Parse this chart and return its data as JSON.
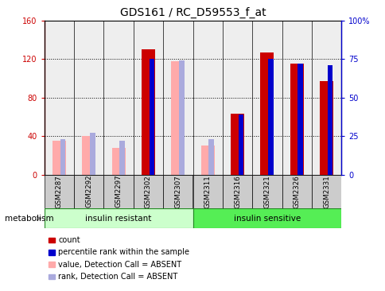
{
  "title": "GDS161 / RC_D59553_f_at",
  "samples": [
    "GSM2287",
    "GSM2292",
    "GSM2297",
    "GSM2302",
    "GSM2307",
    "GSM2311",
    "GSM2316",
    "GSM2321",
    "GSM2326",
    "GSM2331"
  ],
  "count_values": [
    0,
    0,
    0,
    130,
    0,
    0,
    63,
    127,
    115,
    97
  ],
  "rank_values": [
    0,
    0,
    0,
    75,
    0,
    0,
    39,
    75,
    72,
    71
  ],
  "absent_value": [
    35,
    40,
    28,
    0,
    118,
    30,
    0,
    0,
    0,
    0
  ],
  "absent_rank_pct": [
    23,
    27,
    22,
    0,
    74,
    23,
    0,
    0,
    0,
    0
  ],
  "is_absent": [
    true,
    true,
    true,
    false,
    true,
    true,
    false,
    false,
    false,
    false
  ],
  "ylim_left": [
    0,
    160
  ],
  "ylim_right": [
    0,
    100
  ],
  "left_ticks": [
    0,
    40,
    80,
    120,
    160
  ],
  "right_ticks": [
    0,
    25,
    50,
    75,
    100
  ],
  "left_tick_labels": [
    "0",
    "40",
    "80",
    "120",
    "160"
  ],
  "right_tick_labels": [
    "0",
    "25",
    "50",
    "75",
    "100%"
  ],
  "group1_label": "insulin resistant",
  "group2_label": "insulin sensitive",
  "group1_indices": [
    0,
    1,
    2,
    3,
    4
  ],
  "group2_indices": [
    5,
    6,
    7,
    8,
    9
  ],
  "metabolism_label": "metabolism",
  "legend_items": [
    {
      "label": "count",
      "color": "#cc0000"
    },
    {
      "label": "percentile rank within the sample",
      "color": "#0000cc"
    },
    {
      "label": "value, Detection Call = ABSENT",
      "color": "#ffaaaa"
    },
    {
      "label": "rank, Detection Call = ABSENT",
      "color": "#aaaadd"
    }
  ],
  "count_color": "#cc0000",
  "rank_color": "#0000cc",
  "absent_val_color": "#ffaaaa",
  "absent_rank_color": "#aaaadd",
  "plot_bg_color": "#eeeeee",
  "group1_bg": "#ccffcc",
  "group2_bg": "#55ee55",
  "header_bg": "#cccccc",
  "title_fontsize": 10,
  "tick_fontsize": 7,
  "label_fontsize": 7.5
}
